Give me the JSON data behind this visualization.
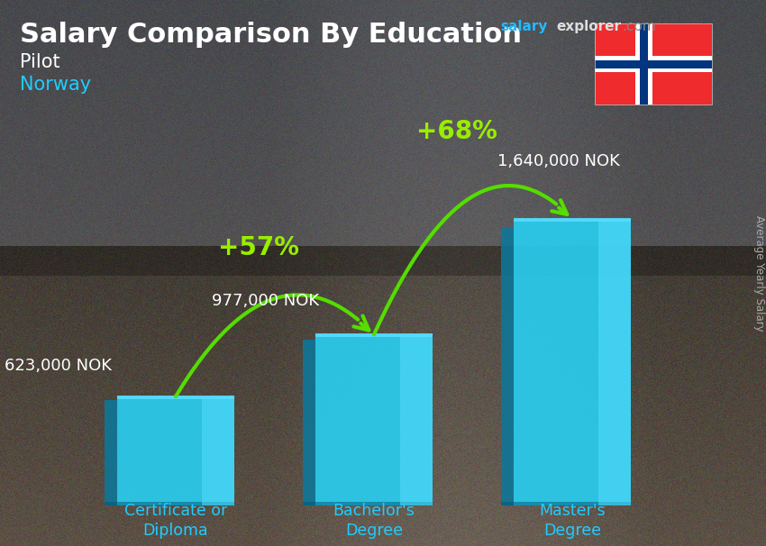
{
  "title": "Salary Comparison By Education",
  "subtitle": "Pilot",
  "country": "Norway",
  "categories": [
    "Certificate or\nDiploma",
    "Bachelor's\nDegree",
    "Master's\nDegree"
  ],
  "values": [
    623000,
    977000,
    1640000
  ],
  "labels": [
    "623,000 NOK",
    "977,000 NOK",
    "1,640,000 NOK"
  ],
  "pct_changes": [
    "+57%",
    "+68%"
  ],
  "bar_color_face": "#29ccee",
  "bar_color_light": "#55ddff",
  "bar_color_dark": "#1199bb",
  "bar_color_side": "#0d7799",
  "title_color": "#ffffff",
  "subtitle_color": "#ffffff",
  "country_color": "#22ccff",
  "label_color": "#ffffff",
  "pct_color": "#99ee00",
  "arrow_color": "#55dd00",
  "xlabel_color": "#22ccff",
  "ylabel_color": "#aaaaaa",
  "salary_word_color": "#22bbff",
  "explorer_color": "#dddddd",
  "dot_com_color": "#888888",
  "ylabel": "Average Yearly Salary",
  "ylim_max": 2050000,
  "bg_top_color": "#8a9aaa",
  "bg_mid_color": "#6a7a8a",
  "bg_bottom_color": "#4a5560"
}
